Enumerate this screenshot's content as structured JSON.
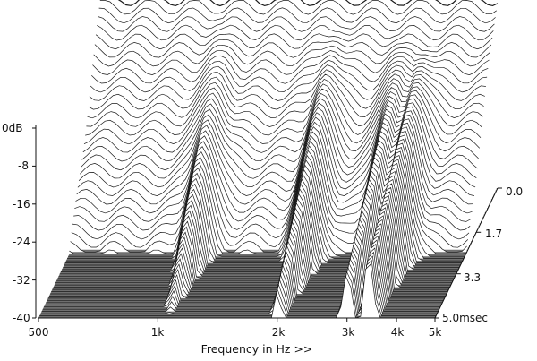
{
  "chart_data": {
    "type": "waterfall",
    "title": "",
    "xlabel": "Frequency in Hz >>",
    "ylabel": "",
    "zlabel": "",
    "x_scale": "log",
    "xlim": [
      500,
      5000
    ],
    "ylim": [
      -40,
      0
    ],
    "zlim": [
      0.0,
      5.0
    ],
    "x_ticks": [
      {
        "value": 500,
        "label": "500"
      },
      {
        "value": 1000,
        "label": "1k"
      },
      {
        "value": 2000,
        "label": "2k"
      },
      {
        "value": 3000,
        "label": "3k"
      },
      {
        "value": 4000,
        "label": "4k"
      },
      {
        "value": 5000,
        "label": "5k"
      }
    ],
    "y_ticks": [
      {
        "value": 0,
        "label": "0dB"
      },
      {
        "value": -8,
        "label": "-8"
      },
      {
        "value": -16,
        "label": "-16"
      },
      {
        "value": -24,
        "label": "-24"
      },
      {
        "value": -32,
        "label": "-32"
      },
      {
        "value": -40,
        "label": "-40"
      }
    ],
    "z_ticks": [
      {
        "value": 0.0,
        "label": "0.0"
      },
      {
        "value": 1.7,
        "label": "1.7"
      },
      {
        "value": 3.3,
        "label": "3.3"
      },
      {
        "value": 5.0,
        "label": "5.0msec"
      }
    ],
    "slice_count": 60,
    "initial_response": {
      "freq": [
        500,
        600,
        700,
        800,
        900,
        1000,
        1200,
        1500,
        1800,
        2000,
        2300,
        2600,
        3000,
        3500,
        4000,
        4500,
        5000
      ],
      "level_db": [
        0,
        0,
        0,
        0,
        0,
        0,
        0,
        0,
        0,
        0,
        0,
        0,
        0,
        0,
        0,
        0,
        0
      ]
    },
    "decay_peaks": [
      {
        "freq": 1050,
        "level_db": -2,
        "decay_ms": 1.8
      },
      {
        "freq": 2000,
        "level_db": -3,
        "decay_ms": 2.2
      },
      {
        "freq": 3000,
        "level_db": -4,
        "decay_ms": 2.6
      },
      {
        "freq": 3400,
        "level_db": -6,
        "decay_ms": 3.2
      }
    ],
    "colors": {
      "lines": "#1a1a1a",
      "fill": "#ffffff",
      "floor": "#6f6f6f"
    }
  }
}
